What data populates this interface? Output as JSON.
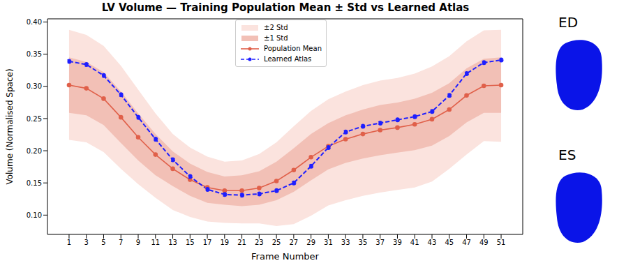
{
  "chart_data": {
    "type": "line",
    "title": "LV Volume — Training Population Mean ± Std vs Learned Atlas",
    "x_label": "Frame Number",
    "y_label": "Volume (Normalised Space)",
    "x": [
      1,
      3,
      5,
      7,
      9,
      11,
      13,
      15,
      17,
      19,
      21,
      23,
      25,
      27,
      29,
      31,
      33,
      35,
      37,
      39,
      41,
      43,
      45,
      47,
      49,
      51
    ],
    "xlim": [
      -1.5,
      53.5
    ],
    "xticks": [
      1,
      3,
      5,
      7,
      9,
      11,
      13,
      15,
      17,
      19,
      21,
      23,
      25,
      27,
      29,
      31,
      33,
      35,
      37,
      39,
      41,
      43,
      45,
      47,
      49,
      51
    ],
    "ylim": [
      0.07,
      0.405
    ],
    "yticks": [
      {
        "value": 0.1,
        "label": "0.10"
      },
      {
        "value": 0.15,
        "label": "0.15"
      },
      {
        "value": 0.2,
        "label": "0.20"
      },
      {
        "value": 0.25,
        "label": "0.25"
      },
      {
        "value": 0.3,
        "label": "0.30"
      },
      {
        "value": 0.35,
        "label": "0.35"
      },
      {
        "value": 0.4,
        "label": "0.40"
      }
    ],
    "grid": false,
    "legend": "upper center",
    "series": [
      {
        "name": "±2 Std",
        "type": "band",
        "color": "#fbe3de",
        "lower": [
          0.217,
          0.213,
          0.198,
          0.172,
          0.148,
          0.127,
          0.108,
          0.097,
          0.09,
          0.088,
          0.087,
          0.087,
          0.083,
          0.086,
          0.099,
          0.115,
          0.123,
          0.13,
          0.135,
          0.139,
          0.143,
          0.152,
          0.172,
          0.194,
          0.215,
          0.214
        ],
        "upper": [
          0.388,
          0.38,
          0.363,
          0.332,
          0.295,
          0.258,
          0.226,
          0.205,
          0.191,
          0.183,
          0.185,
          0.195,
          0.213,
          0.238,
          0.262,
          0.28,
          0.292,
          0.302,
          0.309,
          0.313,
          0.32,
          0.331,
          0.347,
          0.37,
          0.387,
          0.388
        ]
      },
      {
        "name": "±1 Std",
        "type": "band",
        "color": "#f2c0b6",
        "lower": [
          0.259,
          0.255,
          0.24,
          0.212,
          0.185,
          0.162,
          0.145,
          0.13,
          0.119,
          0.116,
          0.114,
          0.116,
          0.123,
          0.136,
          0.154,
          0.171,
          0.181,
          0.188,
          0.193,
          0.197,
          0.201,
          0.208,
          0.223,
          0.244,
          0.259,
          0.259
        ],
        "upper": [
          0.345,
          0.338,
          0.322,
          0.292,
          0.258,
          0.226,
          0.199,
          0.18,
          0.167,
          0.16,
          0.162,
          0.168,
          0.183,
          0.204,
          0.226,
          0.243,
          0.255,
          0.264,
          0.271,
          0.275,
          0.281,
          0.29,
          0.305,
          0.328,
          0.343,
          0.345
        ]
      },
      {
        "name": "Population Mean",
        "type": "line",
        "color": "#e0604a",
        "line_style": "solid",
        "marker": "circle",
        "values": [
          0.302,
          0.297,
          0.281,
          0.252,
          0.221,
          0.194,
          0.172,
          0.155,
          0.143,
          0.138,
          0.138,
          0.142,
          0.153,
          0.17,
          0.19,
          0.207,
          0.218,
          0.226,
          0.232,
          0.236,
          0.241,
          0.249,
          0.264,
          0.286,
          0.301,
          0.302
        ]
      },
      {
        "name": "Learned Atlas",
        "type": "line",
        "color": "#1f1fff",
        "line_style": "dashed",
        "marker": "circle",
        "values": [
          0.339,
          0.334,
          0.317,
          0.287,
          0.252,
          0.218,
          0.186,
          0.16,
          0.14,
          0.132,
          0.131,
          0.133,
          0.138,
          0.15,
          0.176,
          0.205,
          0.229,
          0.238,
          0.243,
          0.248,
          0.253,
          0.261,
          0.286,
          0.32,
          0.337,
          0.341
        ]
      }
    ],
    "side_labels": [
      "ED",
      "ES"
    ]
  }
}
